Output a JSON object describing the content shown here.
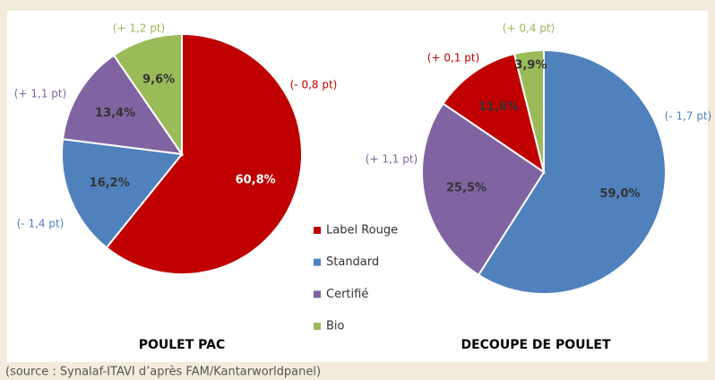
{
  "chart_data": [
    {
      "type": "pie",
      "title": "POULET PAC",
      "categories": [
        "Label Rouge",
        "Standard",
        "Certifié",
        "Bio"
      ],
      "values": [
        60.8,
        16.2,
        13.4,
        9.6
      ],
      "value_labels": [
        "60,8%",
        "16,2%",
        "13,4%",
        "9,6%"
      ],
      "changes": [
        "(- 0,8 pt)",
        "(- 1,4 pt)",
        "(+ 1,1 pt)",
        "(+ 1,2 pt)"
      ],
      "colors": [
        "#c00000",
        "#4f81bd",
        "#8064a2",
        "#9bbb59"
      ]
    },
    {
      "type": "pie",
      "title": "DECOUPE DE POULET",
      "categories": [
        "Standard",
        "Certifié",
        "Label Rouge",
        "Bio"
      ],
      "values": [
        59.0,
        25.5,
        11.6,
        3.9
      ],
      "value_labels": [
        "59,0%",
        "25,5%",
        "11,6%",
        "3,9%"
      ],
      "changes": [
        "(- 1,7 pt)",
        "(+ 1,1 pt)",
        "(+ 0,1 pt)",
        "(+ 0,4 pt)"
      ],
      "colors": [
        "#4f81bd",
        "#8064a2",
        "#c00000",
        "#9bbb59"
      ]
    }
  ],
  "source": "(source : Synalaf-ITAVI d’après FAM/Kantarworldpanel)"
}
